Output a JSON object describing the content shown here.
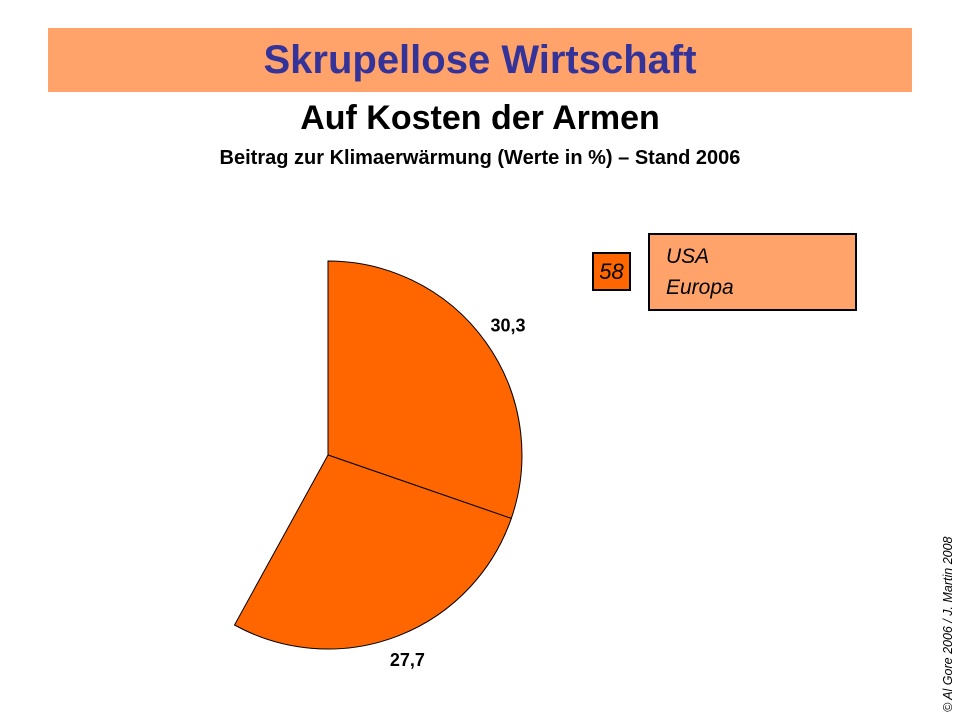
{
  "header": {
    "banner_title": "Skrupellose Wirtschaft",
    "subtitle": "Auf Kosten der Armen",
    "caption": "Beitrag zur Klimaerwärmung (Werte in %) – Stand 2006"
  },
  "legend": {
    "sum_value": "58",
    "entries": [
      "USA",
      "Europa"
    ]
  },
  "footer": {
    "copyright": "© Al Gore 2006 / J. Martin 2008"
  },
  "colors": {
    "banner_bg": "#FFA36B",
    "slice": "#FF6600",
    "title_text": "#333399"
  },
  "chart_data": {
    "type": "pie",
    "title": "Beitrag zur Klimaerwärmung (Werte in %) – Stand 2006",
    "unit": "%",
    "total": 100,
    "start_angle_deg": 0,
    "direction": "clockwise",
    "slices": [
      {
        "display_label": "30,3",
        "value": 30.3
      },
      {
        "display_label": "27,7",
        "value": 27.7
      }
    ],
    "filled_sum": 58,
    "legend_sum_label": "58",
    "legend_entries": [
      "USA",
      "Europa"
    ],
    "slice_color": "#FF6600",
    "legend_position": "top-right",
    "note": "only 58% of the circle is drawn; remainder left blank"
  }
}
